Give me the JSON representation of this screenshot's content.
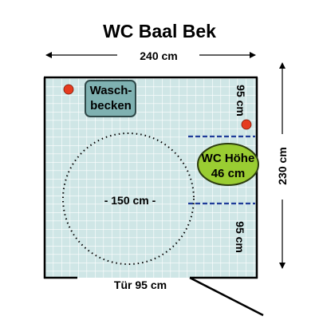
{
  "title": "WC Baal Bek",
  "dimensions": {
    "width": "240 cm",
    "height": "230 cm",
    "upper_right_gap": "95 cm",
    "lower_right_gap": "95 cm",
    "turning_circle": "- 150 cm -",
    "door": "Tür 95 cm"
  },
  "fixtures": {
    "sink_line1": "Wasch-",
    "sink_line2": "becken",
    "toilet_line1": "WC Höhe",
    "toilet_line2": "46 cm"
  },
  "colors": {
    "floor_tile": "#cfe6e6",
    "tile_grid": "#ffffff",
    "sink_fill": "#7fb1b1",
    "toilet_fill": "#9acd32",
    "marker_red": "#e53b1f",
    "grab_bar_blue": "#1f3c99",
    "wall": "#000000"
  },
  "icons": {
    "marker": "red-dot",
    "grab_bar": "dashed-line",
    "door_swing": "door-leaf-line"
  }
}
